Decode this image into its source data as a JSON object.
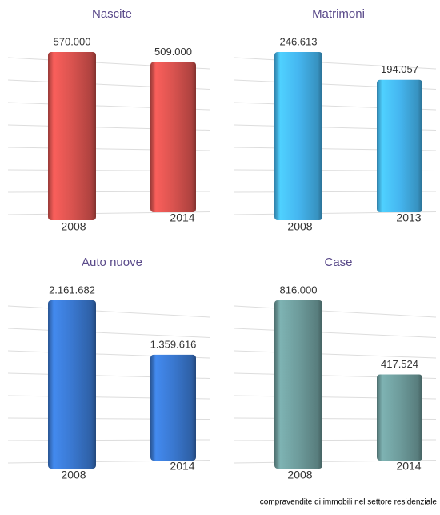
{
  "chart_data": [
    {
      "type": "bar",
      "title": "Nascite",
      "categories": [
        "2008",
        "2014"
      ],
      "values": [
        570000,
        509000
      ],
      "value_labels": [
        "570.000",
        "509.000"
      ],
      "color": "#d9534f"
    },
    {
      "type": "bar",
      "title": "Matrimoni",
      "categories": [
        "2008",
        "2013"
      ],
      "values": [
        246613,
        194057
      ],
      "value_labels": [
        "246.613",
        "194.057"
      ],
      "color": "#45b6f0"
    },
    {
      "type": "bar",
      "title": "Auto nuove",
      "categories": [
        "2008",
        "2014"
      ],
      "values": [
        2161682,
        1359616
      ],
      "value_labels": [
        "2.161.682",
        "1.359.616"
      ],
      "color": "#3a78d0"
    },
    {
      "type": "bar",
      "title": "Case",
      "categories": [
        "2008",
        "2014"
      ],
      "values": [
        816000,
        417524
      ],
      "value_labels": [
        "816.000",
        "417.524"
      ],
      "color": "#6e9c9c"
    }
  ],
  "footnote": "compravendite di immobili nel settore residenziale"
}
